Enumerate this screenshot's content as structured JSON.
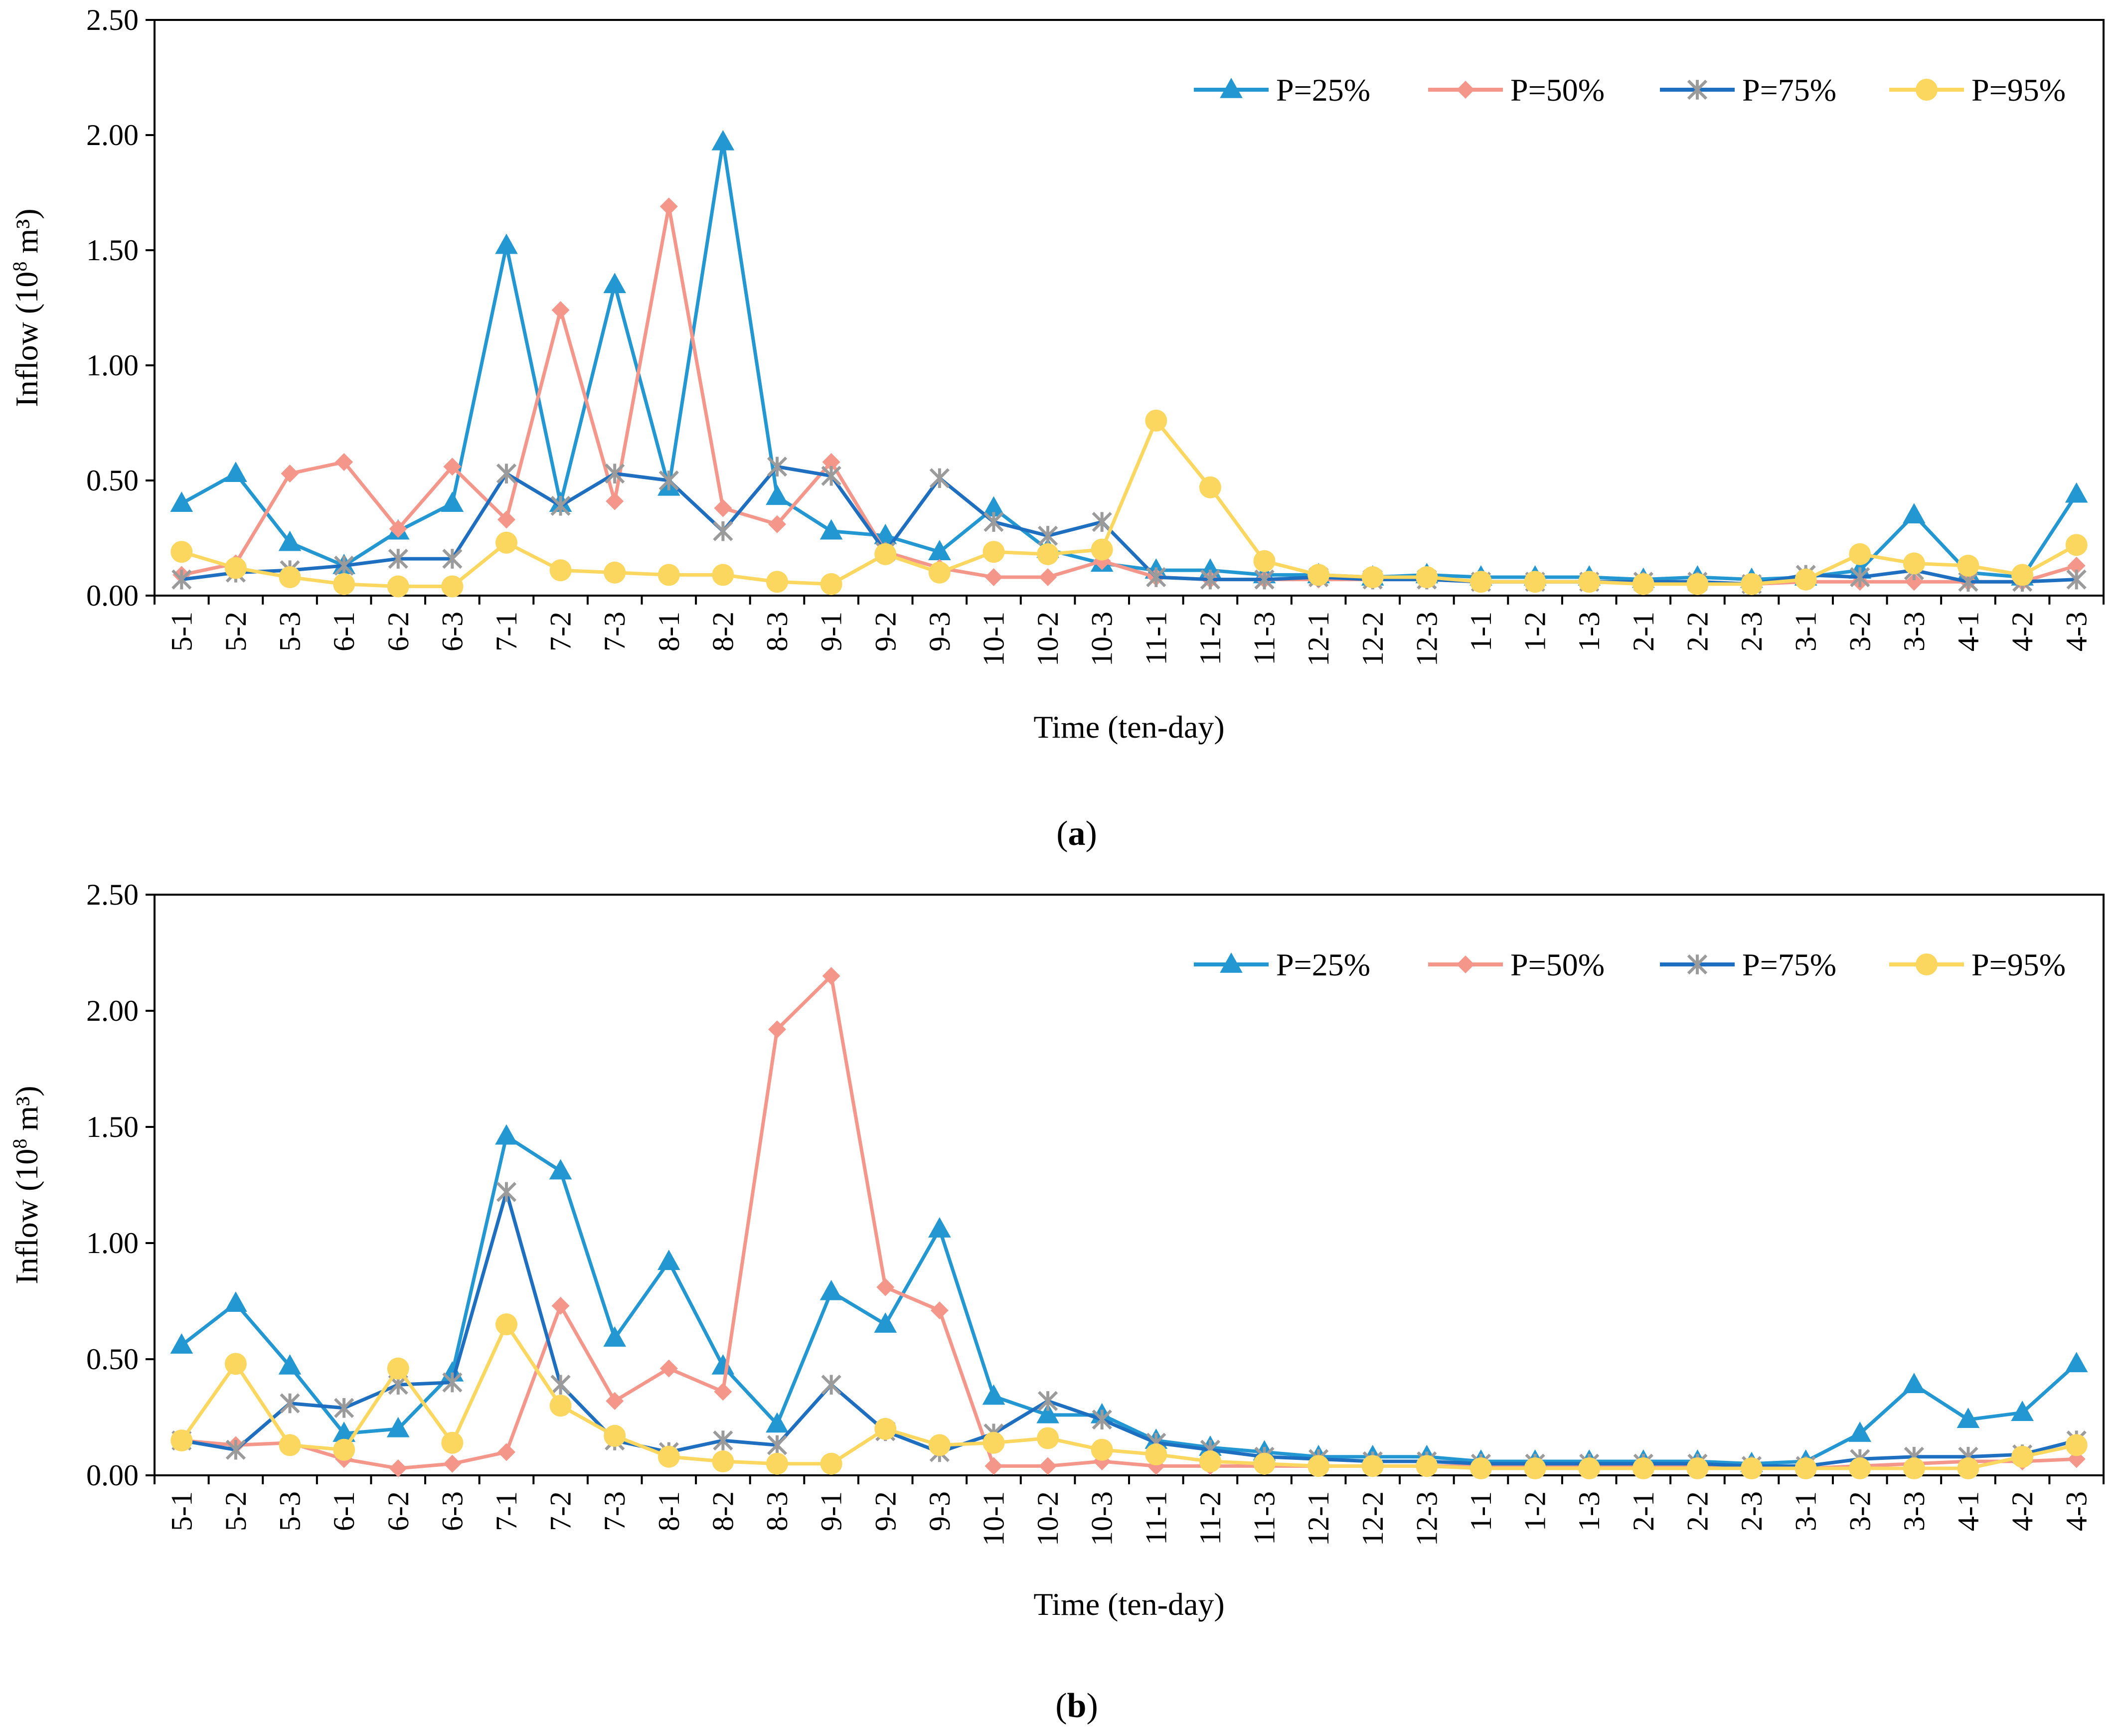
{
  "chart_data": [
    {
      "type": "line",
      "panel_label": "a",
      "xlabel": "Time (ten-day)",
      "ylabel_prefix": "Inflow (10",
      "ylabel_exp": "8",
      "ylabel_suffix": " m³)",
      "ylim": [
        0,
        2.5
      ],
      "yticks": [
        "0.00",
        "0.50",
        "1.00",
        "1.50",
        "2.00",
        "2.50"
      ],
      "legend_position": "top-right",
      "categories": [
        "5-1",
        "5-2",
        "5-3",
        "6-1",
        "6-2",
        "6-3",
        "7-1",
        "7-2",
        "7-3",
        "8-1",
        "8-2",
        "8-3",
        "9-1",
        "9-2",
        "9-3",
        "10-1",
        "10-2",
        "10-3",
        "11-1",
        "11-2",
        "11-3",
        "12-1",
        "12-2",
        "12-3",
        "1-1",
        "1-2",
        "1-3",
        "2-1",
        "2-2",
        "2-3",
        "3-1",
        "3-2",
        "3-3",
        "4-1",
        "4-2",
        "4-3"
      ],
      "series": [
        {
          "name": "P=25%",
          "color": "#2397d1",
          "marker": "triangle",
          "values": [
            0.4,
            0.53,
            0.23,
            0.13,
            0.28,
            0.4,
            1.52,
            0.4,
            1.35,
            0.47,
            1.97,
            0.43,
            0.28,
            0.26,
            0.19,
            0.38,
            0.2,
            0.14,
            0.11,
            0.11,
            0.09,
            0.09,
            0.08,
            0.09,
            0.08,
            0.08,
            0.08,
            0.07,
            0.08,
            0.07,
            0.08,
            0.11,
            0.35,
            0.1,
            0.08,
            0.44
          ]
        },
        {
          "name": "P=50%",
          "color": "#f4978a",
          "marker": "diamond",
          "values": [
            0.09,
            0.14,
            0.53,
            0.58,
            0.29,
            0.56,
            0.33,
            1.24,
            0.41,
            1.69,
            0.38,
            0.31,
            0.58,
            0.19,
            0.12,
            0.08,
            0.08,
            0.15,
            0.08,
            0.07,
            0.07,
            0.07,
            0.07,
            0.07,
            0.06,
            0.06,
            0.06,
            0.06,
            0.06,
            0.05,
            0.06,
            0.06,
            0.06,
            0.06,
            0.06,
            0.13
          ]
        },
        {
          "name": "P=75%",
          "color": "#1f6fc1",
          "marker": "star",
          "values": [
            0.07,
            0.1,
            0.11,
            0.13,
            0.16,
            0.16,
            0.53,
            0.39,
            0.53,
            0.5,
            0.28,
            0.56,
            0.52,
            0.19,
            0.51,
            0.32,
            0.26,
            0.32,
            0.08,
            0.07,
            0.07,
            0.08,
            0.07,
            0.07,
            0.06,
            0.06,
            0.06,
            0.06,
            0.06,
            0.05,
            0.09,
            0.08,
            0.11,
            0.06,
            0.06,
            0.07
          ]
        },
        {
          "name": "P=95%",
          "color": "#fcd75f",
          "marker": "circle",
          "values": [
            0.19,
            0.12,
            0.08,
            0.05,
            0.04,
            0.04,
            0.23,
            0.11,
            0.1,
            0.09,
            0.09,
            0.06,
            0.05,
            0.18,
            0.1,
            0.19,
            0.18,
            0.2,
            0.76,
            0.47,
            0.15,
            0.09,
            0.08,
            0.08,
            0.06,
            0.06,
            0.06,
            0.05,
            0.05,
            0.05,
            0.07,
            0.18,
            0.14,
            0.13,
            0.09,
            0.22
          ]
        }
      ]
    },
    {
      "type": "line",
      "panel_label": "b",
      "xlabel": "Time (ten-day)",
      "ylabel_prefix": "Inflow (10",
      "ylabel_exp": "8",
      "ylabel_suffix": " m³)",
      "ylim": [
        0,
        2.5
      ],
      "yticks": [
        "0.00",
        "0.50",
        "1.00",
        "1.50",
        "2.00",
        "2.50"
      ],
      "legend_position": "top-right",
      "categories": [
        "5-1",
        "5-2",
        "5-3",
        "6-1",
        "6-2",
        "6-3",
        "7-1",
        "7-2",
        "7-3",
        "8-1",
        "8-2",
        "8-3",
        "9-1",
        "9-2",
        "9-3",
        "10-1",
        "10-2",
        "10-3",
        "11-1",
        "11-2",
        "11-3",
        "12-1",
        "12-2",
        "12-3",
        "1-1",
        "1-2",
        "1-3",
        "2-1",
        "2-2",
        "2-3",
        "3-1",
        "3-2",
        "3-3",
        "4-1",
        "4-2",
        "4-3"
      ],
      "series": [
        {
          "name": "P=25%",
          "color": "#2397d1",
          "marker": "triangle",
          "values": [
            0.56,
            0.74,
            0.47,
            0.18,
            0.2,
            0.44,
            1.46,
            1.31,
            0.59,
            0.92,
            0.47,
            0.22,
            0.79,
            0.65,
            1.06,
            0.34,
            0.26,
            0.26,
            0.15,
            0.12,
            0.1,
            0.08,
            0.08,
            0.08,
            0.06,
            0.06,
            0.06,
            0.06,
            0.06,
            0.05,
            0.06,
            0.18,
            0.39,
            0.24,
            0.27,
            0.48
          ]
        },
        {
          "name": "P=50%",
          "color": "#f4978a",
          "marker": "diamond",
          "values": [
            0.15,
            0.13,
            0.14,
            0.07,
            0.03,
            0.05,
            0.1,
            0.73,
            0.32,
            0.46,
            0.36,
            1.92,
            2.15,
            0.81,
            0.71,
            0.04,
            0.04,
            0.06,
            0.04,
            0.04,
            0.04,
            0.04,
            0.04,
            0.04,
            0.04,
            0.04,
            0.04,
            0.04,
            0.04,
            0.03,
            0.03,
            0.04,
            0.05,
            0.06,
            0.06,
            0.07
          ]
        },
        {
          "name": "P=75%",
          "color": "#1f6fc1",
          "marker": "star",
          "values": [
            0.15,
            0.11,
            0.31,
            0.29,
            0.39,
            0.4,
            1.22,
            0.39,
            0.15,
            0.1,
            0.15,
            0.13,
            0.39,
            0.19,
            0.1,
            0.18,
            0.32,
            0.24,
            0.14,
            0.11,
            0.08,
            0.07,
            0.06,
            0.06,
            0.05,
            0.05,
            0.05,
            0.05,
            0.05,
            0.04,
            0.04,
            0.07,
            0.08,
            0.08,
            0.09,
            0.15
          ]
        },
        {
          "name": "P=95%",
          "color": "#fcd75f",
          "marker": "circle",
          "values": [
            0.15,
            0.48,
            0.13,
            0.11,
            0.46,
            0.14,
            0.65,
            0.3,
            0.17,
            0.08,
            0.06,
            0.05,
            0.05,
            0.2,
            0.13,
            0.14,
            0.16,
            0.11,
            0.09,
            0.06,
            0.05,
            0.04,
            0.04,
            0.04,
            0.03,
            0.03,
            0.03,
            0.03,
            0.03,
            0.03,
            0.03,
            0.03,
            0.03,
            0.03,
            0.08,
            0.13
          ]
        }
      ]
    }
  ]
}
